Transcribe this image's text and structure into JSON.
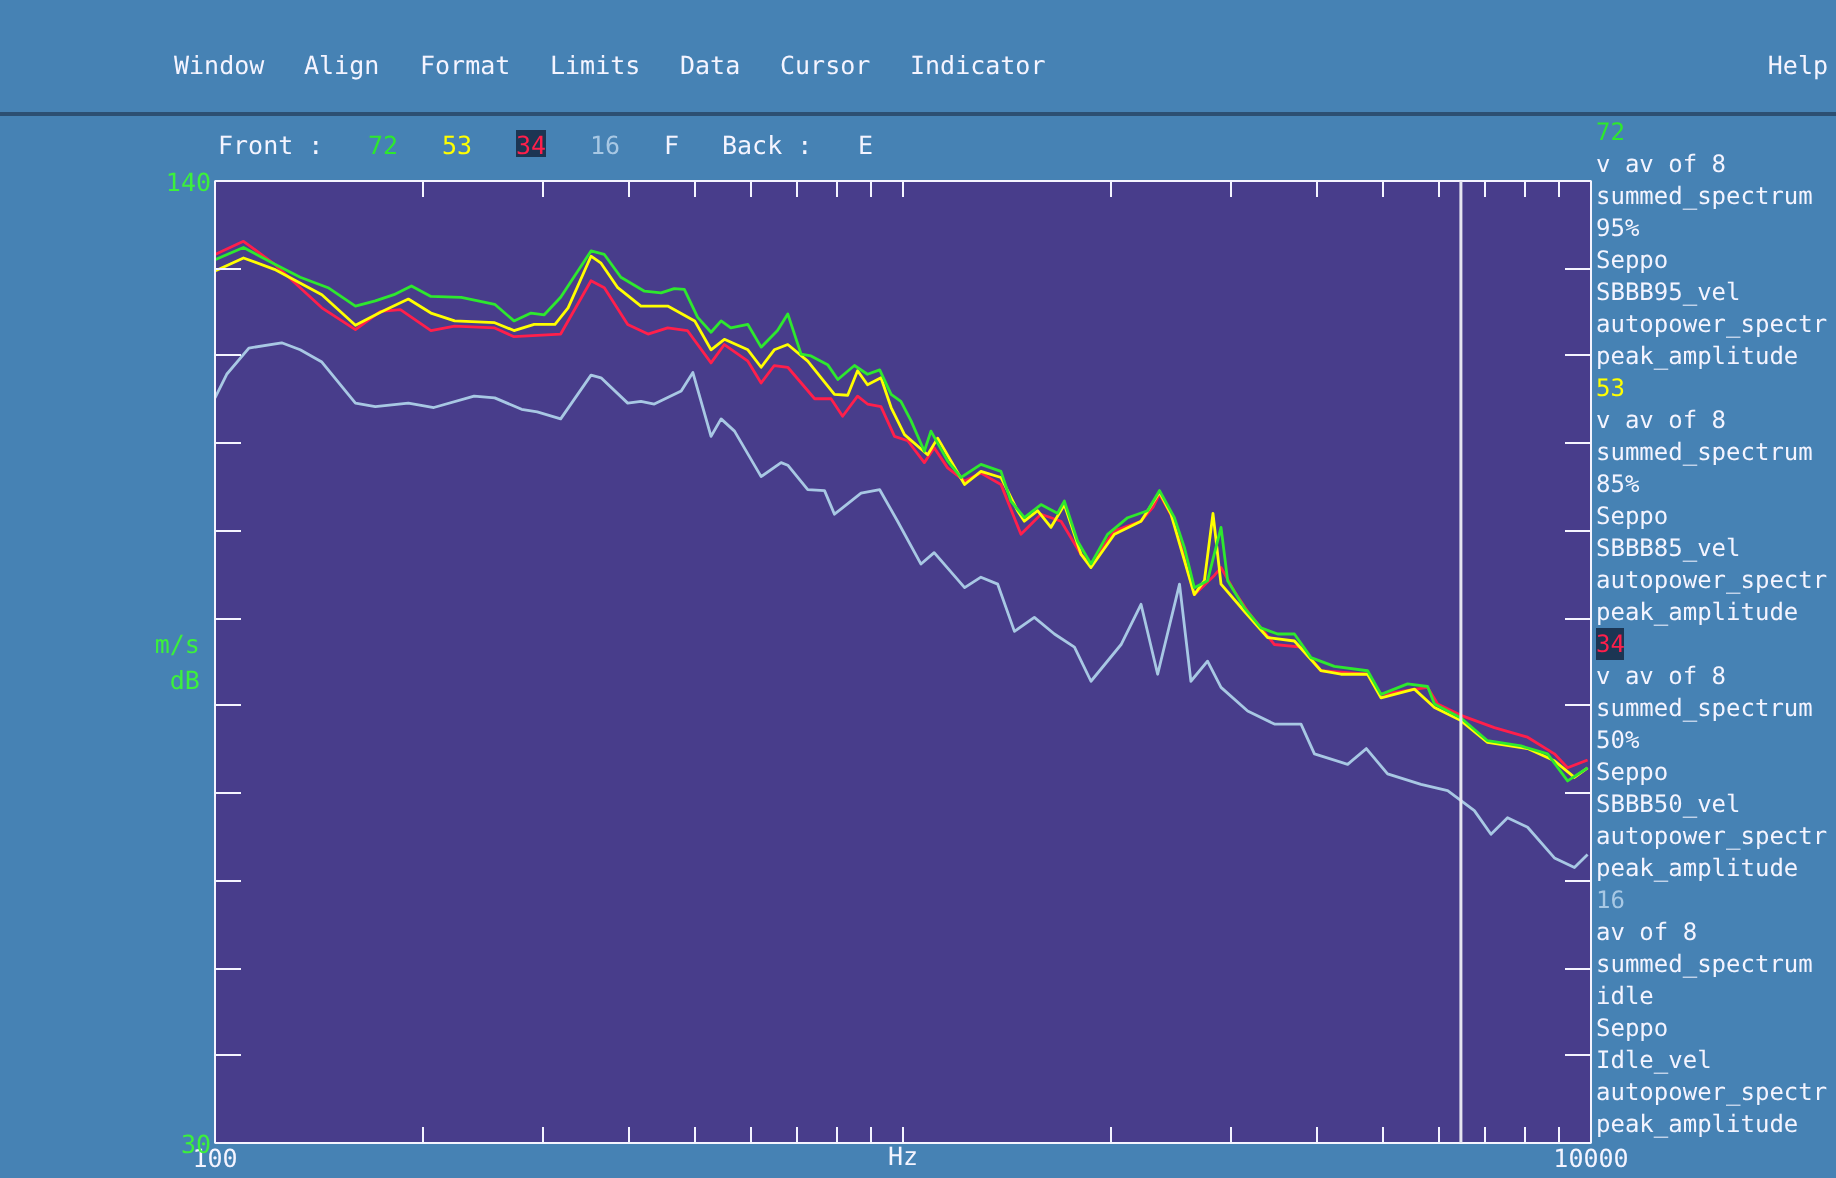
{
  "chart_data": {
    "type": "line",
    "xlabel": "Hz",
    "ylabel": "m/s\ndB",
    "log": "x",
    "xlim": [
      100,
      10000
    ],
    "ylim": [
      30,
      140
    ],
    "xticks": [
      100,
      {
        "value": 200,
        "label": null
      },
      {
        "value": 300,
        "label": null
      },
      {
        "value": 400,
        "label": null
      },
      {
        "value": 500,
        "label": null
      },
      {
        "value": 600,
        "label": null
      },
      {
        "value": 700,
        "label": null
      },
      {
        "value": 800,
        "label": null
      },
      {
        "value": 900,
        "label": null
      },
      {
        "value": 1000,
        "label": null
      },
      {
        "value": 2000,
        "label": null
      },
      {
        "value": 3000,
        "label": null
      },
      {
        "value": 4000,
        "label": null
      },
      {
        "value": 5000,
        "label": null
      },
      {
        "value": 6000,
        "label": null
      },
      {
        "value": 7000,
        "label": null
      },
      {
        "value": 8000,
        "label": null
      },
      {
        "value": 9000,
        "label": null
      },
      10000
    ],
    "yticks": [
      30,
      {
        "value": 40,
        "label": null
      },
      {
        "value": 50,
        "label": null
      },
      {
        "value": 60,
        "label": null
      },
      {
        "value": 70,
        "label": null
      },
      {
        "value": 80,
        "label": null
      },
      {
        "value": 90,
        "label": null
      },
      {
        "value": 100,
        "label": null
      },
      {
        "value": 110,
        "label": null
      },
      {
        "value": 120,
        "label": null
      },
      {
        "value": 130,
        "label": null
      },
      140
    ],
    "ref_lines": [
      {
        "axis": "x",
        "value": 6470,
        "color": "#e6e6f0"
      }
    ],
    "series": [
      {
        "name": "72",
        "color": "#2ee82e",
        "x": [
          100,
          110,
          122,
          133,
          146,
          160,
          171,
          182,
          193,
          206,
          228,
          255,
          272,
          288,
          301,
          318,
          352,
          368,
          389,
          421,
          445,
          465,
          481,
          503,
          526,
          544,
          562,
          595,
          622,
          657,
          680,
          711,
          735,
          777,
          804,
          850,
          888,
          925,
          961,
          993,
          1027,
          1074,
          1098,
          1161,
          1214,
          1298,
          1388,
          1435,
          1501,
          1587,
          1677,
          1716,
          1794,
          1876,
          1983,
          2121,
          2267,
          2360,
          2480,
          2564,
          2651,
          2771,
          2899,
          2964,
          3134,
          3314,
          3504,
          3706,
          3918,
          4236,
          4735,
          4952,
          5413,
          5788,
          5922,
          6471,
          7073,
          7912,
          8647,
          9247,
          9886
        ],
        "values": [
          131.0,
          132.4,
          130.5,
          129.0,
          127.8,
          125.7,
          126.3,
          127.0,
          128.0,
          126.8,
          126.7,
          125.9,
          124.0,
          124.9,
          124.7,
          126.7,
          132.0,
          131.6,
          129.0,
          127.4,
          127.2,
          127.7,
          127.6,
          124.4,
          122.7,
          124.0,
          123.2,
          123.6,
          121.0,
          122.9,
          124.8,
          120.2,
          120.0,
          119.0,
          117.3,
          118.9,
          117.9,
          118.4,
          115.6,
          114.8,
          112.6,
          109.1,
          111.4,
          108.0,
          106.1,
          107.6,
          106.8,
          103.4,
          101.5,
          103.0,
          102.0,
          103.4,
          98.8,
          96.2,
          99.6,
          101.5,
          102.3,
          104.6,
          101.5,
          98.1,
          93.5,
          94.3,
          100.4,
          94.3,
          91.2,
          88.9,
          88.2,
          88.2,
          85.5,
          84.5,
          84.0,
          81.3,
          82.5,
          82.2,
          80.2,
          78.6,
          76.0,
          75.4,
          74.5,
          71.4,
          72.9
        ]
      },
      {
        "name": "53",
        "color": "#ffff00",
        "x": [
          100,
          110,
          122,
          143,
          160,
          174,
          191,
          206,
          223,
          255,
          272,
          291,
          312,
          326,
          352,
          364,
          385,
          416,
          455,
          498,
          526,
          550,
          595,
          622,
          650,
          680,
          727,
          795,
          831,
          859,
          888,
          929,
          961,
          1005,
          1086,
          1123,
          1229,
          1298,
          1388,
          1467,
          1501,
          1569,
          1641,
          1716,
          1815,
          1876,
          2029,
          2218,
          2360,
          2452,
          2651,
          2742,
          2822,
          2899,
          3134,
          3388,
          3706,
          4052,
          4331,
          4735,
          4952,
          5538,
          5922,
          6471,
          7073,
          8088,
          8847,
          9461,
          9886
        ],
        "values": [
          129.7,
          131.2,
          129.9,
          127.0,
          123.5,
          125.0,
          126.5,
          124.9,
          124.0,
          123.8,
          122.9,
          123.6,
          123.6,
          125.5,
          131.4,
          130.6,
          127.8,
          125.7,
          125.7,
          124.0,
          120.7,
          121.9,
          120.7,
          118.7,
          120.7,
          121.3,
          119.4,
          115.6,
          115.5,
          118.3,
          116.7,
          117.5,
          114.1,
          111.0,
          108.7,
          110.6,
          105.3,
          106.8,
          106.1,
          102.3,
          101.1,
          102.3,
          100.4,
          103.0,
          97.3,
          95.8,
          99.6,
          101.1,
          104.4,
          101.9,
          92.7,
          94.3,
          102.0,
          93.9,
          90.8,
          87.8,
          87.4,
          84.0,
          83.6,
          83.6,
          80.9,
          81.9,
          79.8,
          78.3,
          75.8,
          75.1,
          73.7,
          71.8,
          72.9
        ]
      },
      {
        "name": "34",
        "color": "#ff1f4b",
        "x": [
          100,
          110,
          122,
          143,
          160,
          174,
          186,
          206,
          223,
          255,
          272,
          318,
          352,
          368,
          398,
          426,
          455,
          486,
          526,
          550,
          595,
          622,
          650,
          680,
          744,
          786,
          817,
          859,
          888,
          929,
          972,
          1016,
          1074,
          1110,
          1161,
          1229,
          1298,
          1388,
          1484,
          1587,
          1697,
          1815,
          1876,
          2029,
          2218,
          2309,
          2360,
          2480,
          2651,
          2835,
          2899,
          3031,
          3169,
          3466,
          3789,
          4052,
          4735,
          4952,
          5788,
          5986,
          6471,
          7236,
          8088,
          8847,
          9247,
          9886
        ],
        "values": [
          131.6,
          133.1,
          130.5,
          125.5,
          123.0,
          125.1,
          125.3,
          122.9,
          123.4,
          123.2,
          122.2,
          122.5,
          128.6,
          127.8,
          123.6,
          122.5,
          123.2,
          122.9,
          119.2,
          121.3,
          119.4,
          116.9,
          118.9,
          118.7,
          115.1,
          115.1,
          113.1,
          115.4,
          114.5,
          114.2,
          110.8,
          110.3,
          107.8,
          109.5,
          107.2,
          105.7,
          106.6,
          105.3,
          99.6,
          101.9,
          101.1,
          97.3,
          96.2,
          100.0,
          101.1,
          102.7,
          104.2,
          101.1,
          92.7,
          94.9,
          95.8,
          93.1,
          90.8,
          87.0,
          86.7,
          84.0,
          83.6,
          81.3,
          82.1,
          80.2,
          78.9,
          77.5,
          76.4,
          74.5,
          72.9,
          73.8
        ]
      },
      {
        "name": "16",
        "color": "#a8c8e4",
        "x": [
          100,
          104,
          112,
          125,
          133,
          143,
          160,
          171,
          191,
          208,
          238,
          255,
          279,
          294,
          318,
          352,
          364,
          398,
          416,
          435,
          476,
          495,
          526,
          544,
          569,
          622,
          665,
          680,
          727,
          769,
          795,
          869,
          925,
          982,
          1062,
          1110,
          1229,
          1298,
          1373,
          1452,
          1552,
          1660,
          1775,
          1876,
          2075,
          2218,
          2345,
          2523,
          2621,
          2771,
          2899,
          3169,
          3466,
          3789,
          3963,
          4429,
          4715,
          5062,
          5661,
          6189,
          6768,
          7155,
          7563,
          8088,
          8847,
          9461,
          9886
        ],
        "values": [
          115.2,
          117.9,
          120.9,
          121.5,
          120.7,
          119.3,
          114.6,
          114.2,
          114.6,
          114.1,
          115.4,
          115.2,
          113.9,
          113.6,
          112.8,
          117.8,
          117.5,
          114.6,
          114.8,
          114.5,
          116.0,
          118.1,
          110.8,
          112.8,
          111.4,
          106.2,
          107.8,
          107.5,
          104.7,
          104.6,
          101.9,
          104.3,
          104.7,
          101.1,
          96.2,
          97.5,
          93.5,
          94.7,
          93.9,
          88.5,
          90.1,
          88.2,
          86.7,
          82.8,
          87.0,
          91.6,
          83.6,
          93.9,
          82.8,
          85.1,
          82.1,
          79.4,
          77.9,
          77.9,
          74.5,
          73.3,
          75.1,
          72.2,
          71.0,
          70.3,
          68.0,
          65.3,
          67.2,
          66.1,
          62.6,
          61.5,
          63.0
        ]
      }
    ],
    "annotations": [
      "Window",
      "Align",
      "Format",
      "Limits",
      "Data",
      "Cursor",
      "Indicator",
      "Help",
      "Front :",
      "F",
      "Back :",
      "E",
      "v av of 8\nsummed_spectrum\n95%\nSeppo\nSBBB95_vel\nautopower_spectr\npeak_amplitude",
      "v av of 8\nsummed_spectrum\n85%\nSeppo\nSBBB85_vel\nautopower_spectr\npeak_amplitude",
      "v av of 8\nsummed_spectrum\n50%\nSeppo\nSBBB50_vel\nautopower_spectr\npeak_amplitude",
      "av of 8\nsummed_spectrum\nidle\nSeppo\nIdle_vel\nautopower_spectr\npeak_amplitude"
    ]
  }
}
